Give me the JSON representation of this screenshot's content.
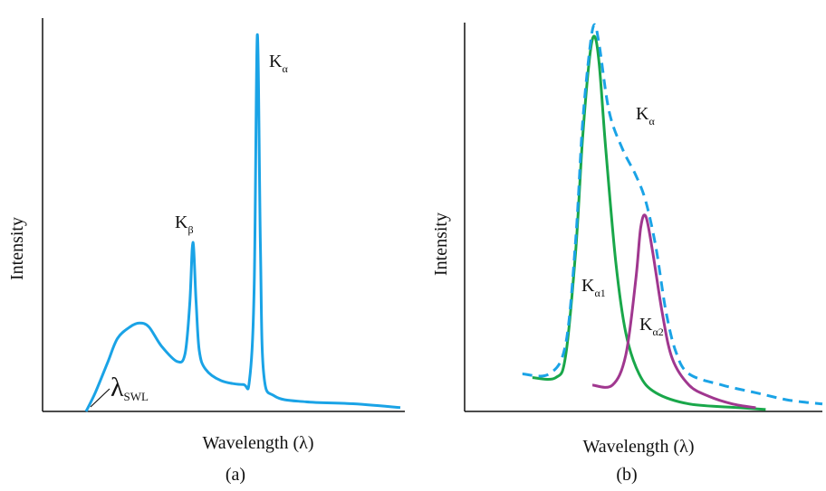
{
  "chart_data": [
    {
      "type": "line",
      "panel_label": "(a)",
      "xlabel": "Wavelength (λ)",
      "ylabel": "Intensity",
      "axis_ticks": false,
      "grid": false,
      "series": [
        {
          "color": "#1aa3e6",
          "style": "solid",
          "points": [
            [
              0,
              0
            ],
            [
              0.03,
              0.05
            ],
            [
              0.07,
              0.13
            ],
            [
              0.1,
              0.19
            ],
            [
              0.14,
              0.22
            ],
            [
              0.17,
              0.23
            ],
            [
              0.2,
              0.22
            ],
            [
              0.24,
              0.17
            ],
            [
              0.29,
              0.13
            ],
            [
              0.315,
              0.15
            ],
            [
              0.33,
              0.28
            ],
            [
              0.34,
              0.44
            ],
            [
              0.35,
              0.29
            ],
            [
              0.36,
              0.16
            ],
            [
              0.38,
              0.11
            ],
            [
              0.43,
              0.08
            ],
            [
              0.5,
              0.07
            ],
            [
              0.52,
              0.08
            ],
            [
              0.535,
              0.32
            ],
            [
              0.545,
              0.98
            ],
            [
              0.555,
              0.42
            ],
            [
              0.565,
              0.1
            ],
            [
              0.6,
              0.04
            ],
            [
              0.7,
              0.025
            ],
            [
              0.85,
              0.02
            ],
            [
              1.0,
              0.01
            ]
          ]
        }
      ],
      "annotations": [
        {
          "text": "K",
          "sub": "α"
        },
        {
          "text": "K",
          "sub": "β"
        },
        {
          "text": "λ",
          "sub": "SWL"
        }
      ]
    },
    {
      "type": "line",
      "panel_label": "(b)",
      "xlabel": "Wavelength (λ)",
      "ylabel": "Intensity",
      "axis_ticks": false,
      "grid": false,
      "series": [
        {
          "color": "#19a74a",
          "style": "solid",
          "label": {
            "text": "K",
            "sub": "α1"
          },
          "points": [
            [
              0.13,
              0.09
            ],
            [
              0.2,
              0.09
            ],
            [
              0.23,
              0.15
            ],
            [
              0.26,
              0.43
            ],
            [
              0.28,
              0.72
            ],
            [
              0.3,
              0.93
            ],
            [
              0.315,
              1.0
            ],
            [
              0.33,
              0.93
            ],
            [
              0.35,
              0.7
            ],
            [
              0.38,
              0.4
            ],
            [
              0.41,
              0.21
            ],
            [
              0.45,
              0.1
            ],
            [
              0.5,
              0.05
            ],
            [
              0.6,
              0.02
            ],
            [
              0.75,
              0.01
            ],
            [
              0.83,
              0.005
            ]
          ]
        },
        {
          "color": "#a0378f",
          "style": "solid",
          "label": {
            "text": "K",
            "sub": "α2"
          },
          "points": [
            [
              0.31,
              0.07
            ],
            [
              0.37,
              0.07
            ],
            [
              0.41,
              0.15
            ],
            [
              0.44,
              0.35
            ],
            [
              0.455,
              0.49
            ],
            [
              0.47,
              0.52
            ],
            [
              0.49,
              0.43
            ],
            [
              0.52,
              0.26
            ],
            [
              0.55,
              0.14
            ],
            [
              0.6,
              0.07
            ],
            [
              0.66,
              0.04
            ],
            [
              0.73,
              0.02
            ],
            [
              0.8,
              0.01
            ]
          ]
        },
        {
          "color": "#1aa3e6",
          "style": "dashed",
          "label": {
            "text": "K",
            "sub": "α"
          },
          "points": [
            [
              0.1,
              0.1
            ],
            [
              0.18,
              0.1
            ],
            [
              0.23,
              0.18
            ],
            [
              0.26,
              0.46
            ],
            [
              0.28,
              0.76
            ],
            [
              0.3,
              0.95
            ],
            [
              0.315,
              1.03
            ],
            [
              0.33,
              0.98
            ],
            [
              0.36,
              0.8
            ],
            [
              0.4,
              0.7
            ],
            [
              0.44,
              0.63
            ],
            [
              0.47,
              0.56
            ],
            [
              0.5,
              0.44
            ],
            [
              0.53,
              0.27
            ],
            [
              0.56,
              0.16
            ],
            [
              0.6,
              0.1
            ],
            [
              0.7,
              0.07
            ],
            [
              0.8,
              0.05
            ],
            [
              0.9,
              0.03
            ],
            [
              1.0,
              0.02
            ]
          ]
        }
      ]
    }
  ]
}
